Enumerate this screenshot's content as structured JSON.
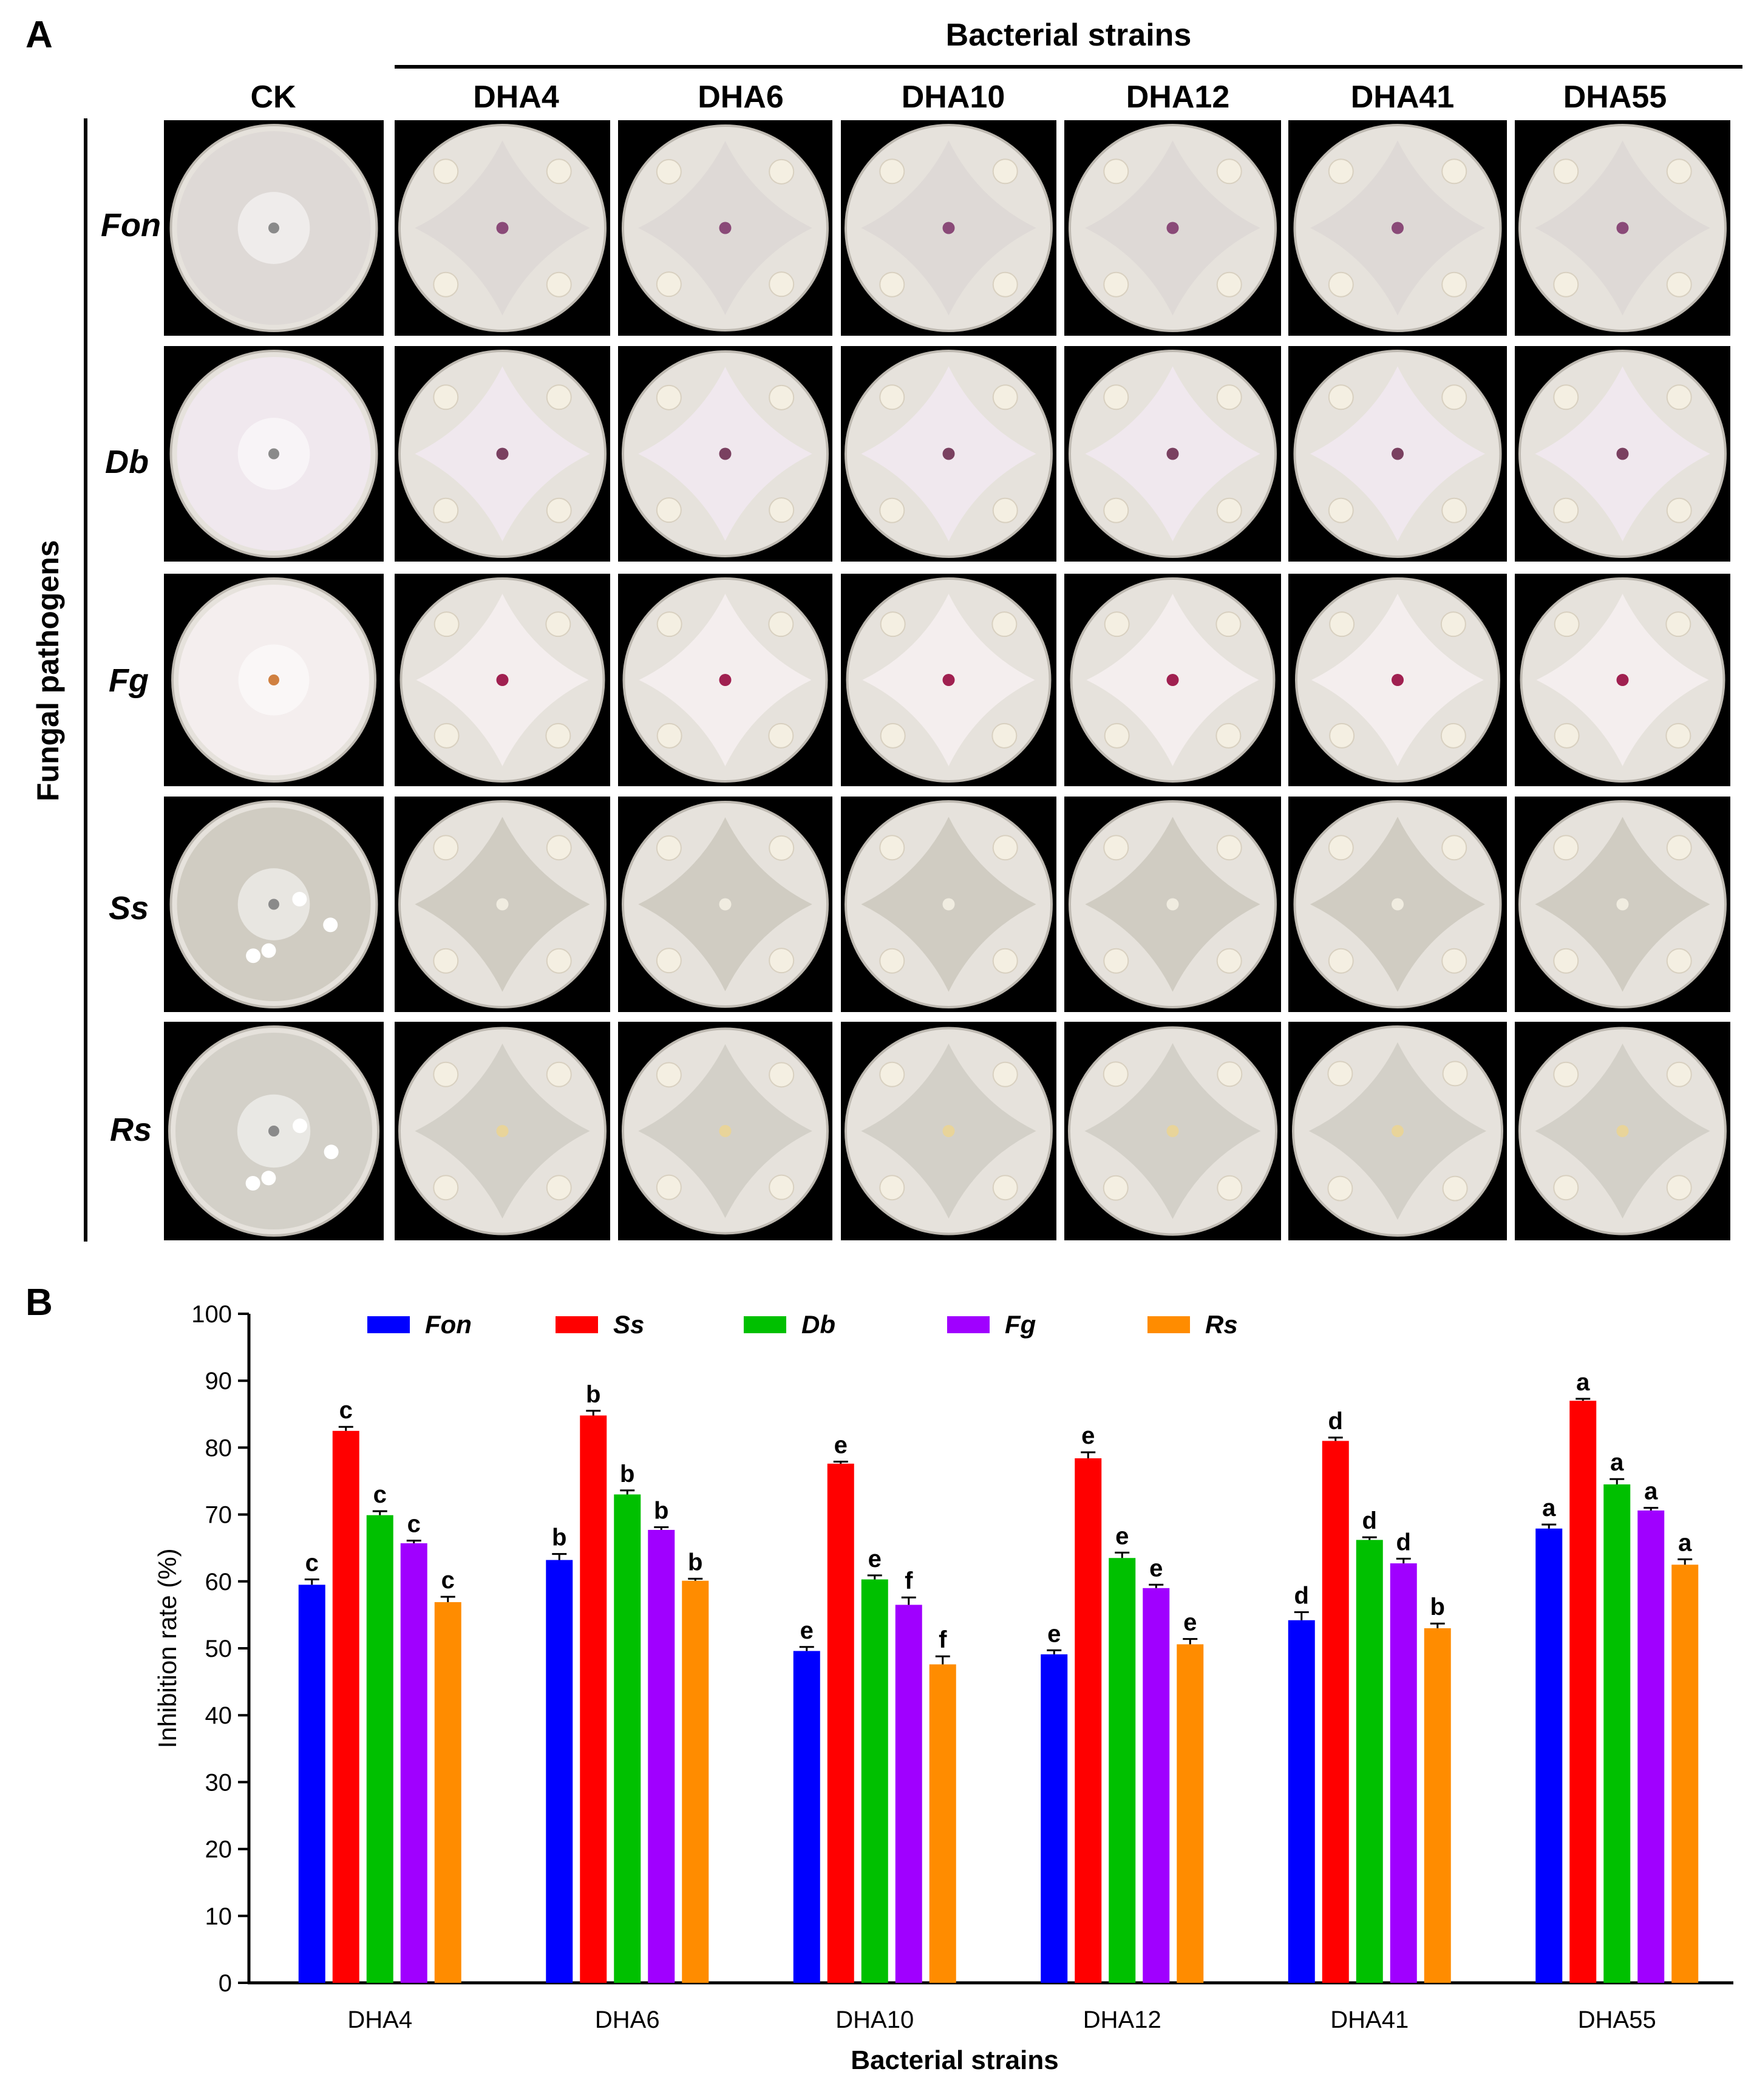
{
  "panel_a": {
    "letter": "A",
    "group_header": "Bacterial strains",
    "row_axis_label": "Fungal pathogens",
    "columns": [
      "CK",
      "DHA4",
      "DHA6",
      "DHA10",
      "DHA12",
      "DHA41",
      "DHA55"
    ],
    "rows": [
      "Fon",
      "Db",
      "Fg",
      "Ss",
      "Rs"
    ]
  },
  "panel_b": {
    "letter": "B"
  },
  "colors": {
    "Fon": "#0000ff",
    "Ss": "#ff0000",
    "Db": "#00c000",
    "Fg": "#a000ff",
    "Rs": "#ff8c00"
  },
  "chart_data": {
    "type": "bar",
    "title": "",
    "xlabel": "Bacterial strains",
    "ylabel": "Inhibition rate (%)",
    "ylim": [
      0,
      100
    ],
    "yticks": [
      0,
      10,
      20,
      30,
      40,
      50,
      60,
      70,
      80,
      90,
      100
    ],
    "legend_position": "top",
    "categories": [
      "DHA4",
      "DHA6",
      "DHA10",
      "DHA12",
      "DHA41",
      "DHA55"
    ],
    "series": [
      {
        "name": "Fon",
        "values": [
          59.5,
          63.2,
          49.6,
          49.1,
          54.2,
          67.9
        ],
        "errors": [
          0.8,
          0.9,
          0.6,
          0.6,
          1.2,
          0.6
        ],
        "letters": [
          "c",
          "b",
          "e",
          "e",
          "d",
          "a"
        ]
      },
      {
        "name": "Ss",
        "values": [
          82.5,
          84.8,
          77.6,
          78.4,
          81.0,
          87.0
        ],
        "errors": [
          0.6,
          0.7,
          0.3,
          0.9,
          0.5,
          0.3
        ],
        "letters": [
          "c",
          "b",
          "e",
          "e",
          "d",
          "a"
        ]
      },
      {
        "name": "Db",
        "values": [
          69.9,
          73.0,
          60.3,
          63.5,
          66.2,
          74.5
        ],
        "errors": [
          0.6,
          0.6,
          0.6,
          0.8,
          0.4,
          0.8
        ],
        "letters": [
          "c",
          "b",
          "e",
          "e",
          "d",
          "a"
        ]
      },
      {
        "name": "Fg",
        "values": [
          65.7,
          67.7,
          56.5,
          59.0,
          62.7,
          70.6
        ],
        "errors": [
          0.4,
          0.4,
          1.1,
          0.5,
          0.7,
          0.4
        ],
        "letters": [
          "c",
          "b",
          "f",
          "e",
          "d",
          "a"
        ]
      },
      {
        "name": "Rs",
        "values": [
          56.9,
          60.1,
          47.6,
          50.6,
          53.0,
          62.5
        ],
        "errors": [
          0.8,
          0.3,
          1.2,
          0.8,
          0.7,
          0.8
        ],
        "letters": [
          "c",
          "b",
          "f",
          "e",
          "b",
          "a"
        ]
      }
    ]
  }
}
